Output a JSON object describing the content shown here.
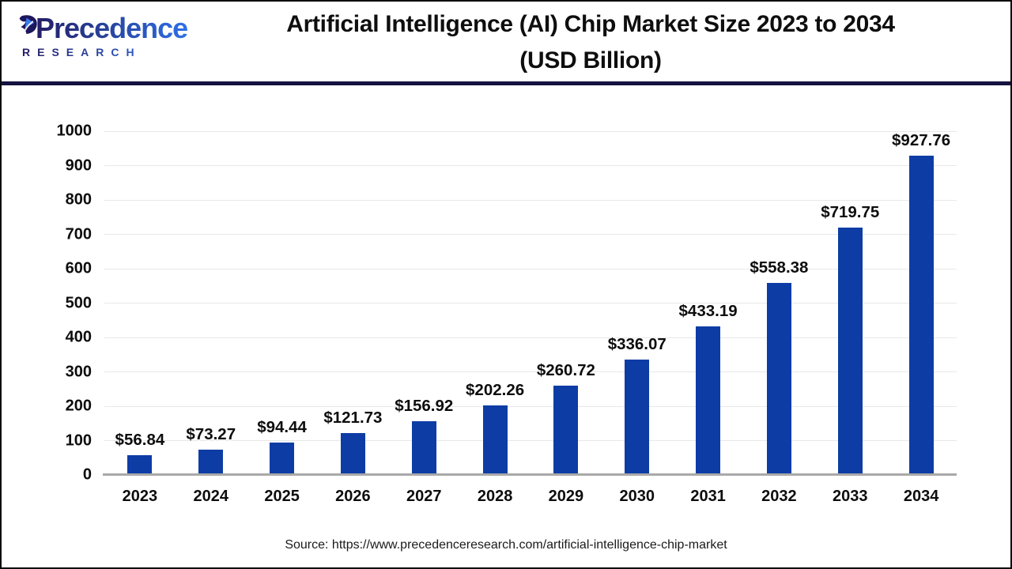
{
  "header": {
    "logo": {
      "brand": "Precedence",
      "brand_sub": "RESEARCH",
      "icon": "leaf-icon",
      "gradient_start": "#241d66",
      "gradient_end": "#2e6fe8"
    },
    "title_line1": "Artificial Intelligence (AI) Chip Market Size 2023 to 2034",
    "title_line2": "(USD Billion)",
    "divider_color": "#15133f"
  },
  "chart_data": {
    "type": "bar",
    "title": "Artificial Intelligence (AI) Chip Market Size 2023 to 2034 (USD Billion)",
    "categories": [
      "2023",
      "2024",
      "2025",
      "2026",
      "2027",
      "2028",
      "2029",
      "2030",
      "2031",
      "2032",
      "2033",
      "2034"
    ],
    "values": [
      56.84,
      73.27,
      94.44,
      121.73,
      156.92,
      202.26,
      260.72,
      336.07,
      433.19,
      558.38,
      719.75,
      927.76
    ],
    "value_labels": [
      "$56.84",
      "$73.27",
      "$94.44",
      "$121.73",
      "$156.92",
      "$202.26",
      "$260.72",
      "$336.07",
      "$433.19",
      "$558.38",
      "$719.75",
      "$927.76"
    ],
    "y_ticks": [
      0,
      100,
      200,
      300,
      400,
      500,
      600,
      700,
      800,
      900,
      1000
    ],
    "ylim": [
      0,
      1000
    ],
    "xlabel": "",
    "ylabel": "",
    "grid": true,
    "legend": "none",
    "bar_color": "#0d3ca5",
    "gridline_color": "#e8e8e8",
    "axis_line_color": "#a9a9a9"
  },
  "footer": {
    "source": "Source: https://www.precedenceresearch.com/artificial-intelligence-chip-market"
  }
}
